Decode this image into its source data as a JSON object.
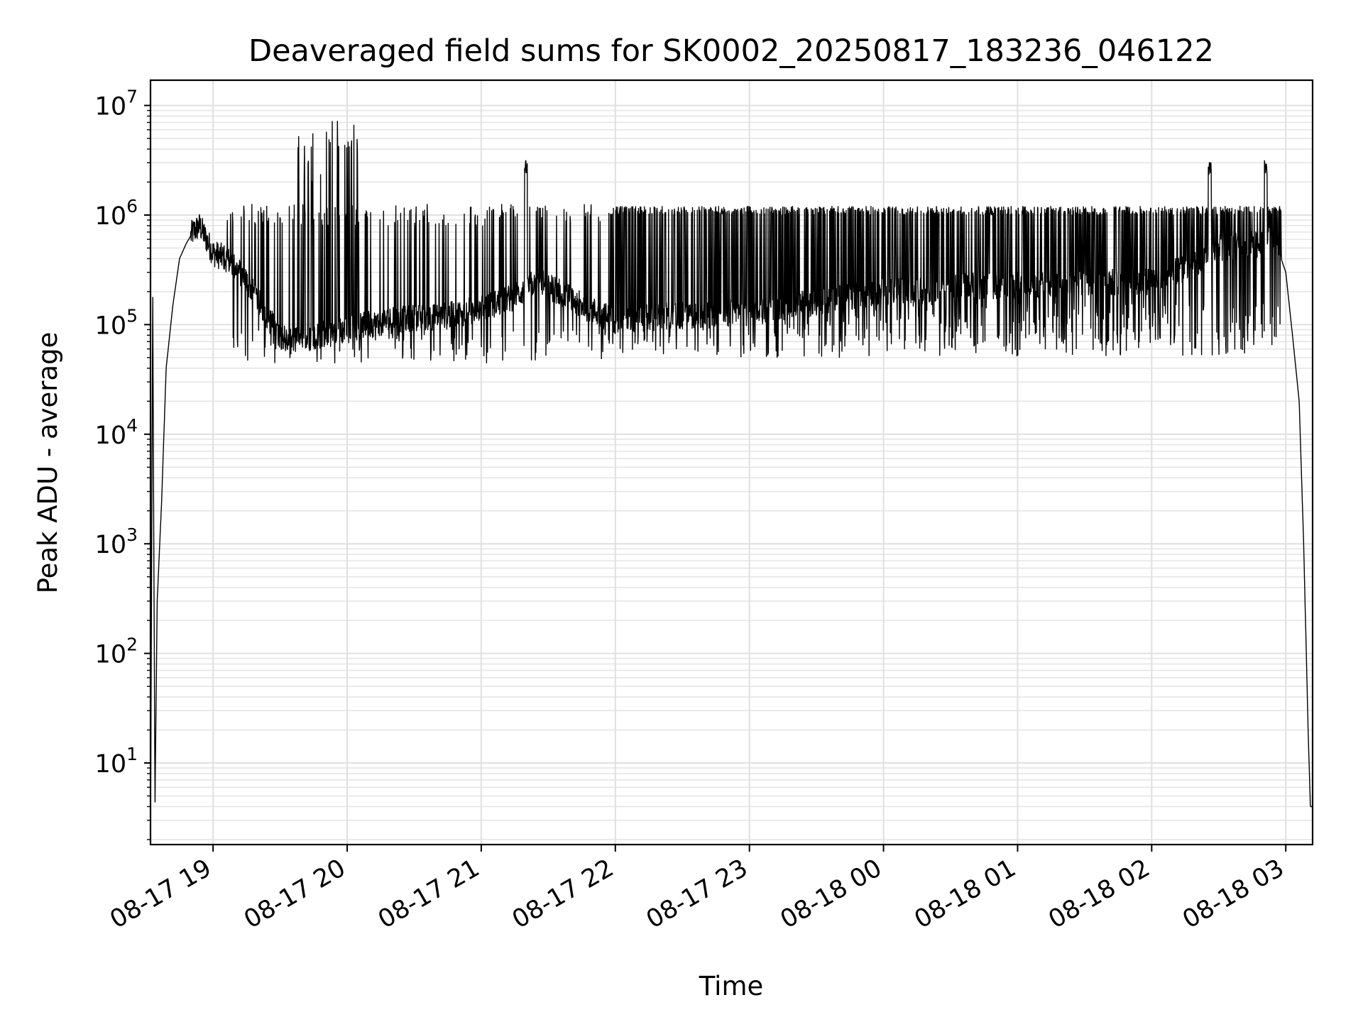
{
  "chart_data": {
    "type": "line",
    "title": "Deaveraged field sums for SK0002_20250817_183236_046122",
    "xlabel": "Time",
    "ylabel": "Peak ADU - average",
    "yscale": "log",
    "grid": true,
    "x_range": [
      "2025-08-17 18:32",
      "2025-08-18 03:12"
    ],
    "y_range": [
      1.8,
      17000000
    ],
    "x_ticks": [
      "08-17 19",
      "08-17 20",
      "08-17 21",
      "08-17 22",
      "08-17 23",
      "08-18 00",
      "08-18 01",
      "08-18 02",
      "08-18 03"
    ],
    "y_ticks": [
      {
        "base": "10",
        "exp": "1"
      },
      {
        "base": "10",
        "exp": "2"
      },
      {
        "base": "10",
        "exp": "3"
      },
      {
        "base": "10",
        "exp": "4"
      },
      {
        "base": "10",
        "exp": "5"
      },
      {
        "base": "10",
        "exp": "6"
      },
      {
        "base": "10",
        "exp": "7"
      }
    ],
    "line_color": "#000000",
    "series": [
      {
        "x": [
          "2025-08-17 18:32",
          "2025-08-17 18:33",
          "2025-08-17 18:34",
          "2025-08-17 18:35",
          "2025-08-17 18:37",
          "2025-08-17 18:39",
          "2025-08-17 18:42",
          "2025-08-17 18:45",
          "2025-08-17 18:48",
          "2025-08-17 18:51",
          "2025-08-17 18:54",
          "2025-08-17 18:57",
          "2025-08-17 19:00",
          "2025-08-17 19:06",
          "2025-08-17 19:12",
          "2025-08-17 19:18",
          "2025-08-17 19:24",
          "2025-08-17 19:30",
          "2025-08-17 19:36",
          "2025-08-17 19:42",
          "2025-08-17 19:48",
          "2025-08-17 19:54",
          "2025-08-17 20:00",
          "2025-08-17 20:10",
          "2025-08-17 20:20",
          "2025-08-17 20:30",
          "2025-08-17 20:45",
          "2025-08-17 21:00",
          "2025-08-17 21:15",
          "2025-08-17 21:25",
          "2025-08-17 21:35",
          "2025-08-17 21:45",
          "2025-08-17 21:55",
          "2025-08-17 22:00",
          "2025-08-17 22:30",
          "2025-08-17 23:00",
          "2025-08-17 23:30",
          "2025-08-18 00:00",
          "2025-08-18 00:30",
          "2025-08-18 01:00",
          "2025-08-18 01:30",
          "2025-08-18 02:00",
          "2025-08-18 02:10",
          "2025-08-18 02:20",
          "2025-08-18 02:30",
          "2025-08-18 02:40",
          "2025-08-18 02:50",
          "2025-08-18 02:55",
          "2025-08-18 03:00",
          "2025-08-18 03:03",
          "2025-08-18 03:06",
          "2025-08-18 03:08",
          "2025-08-18 03:10",
          "2025-08-18 03:11",
          "2025-08-18 03:12"
        ],
        "y": [
          2,
          200000,
          4,
          300,
          2500,
          40000,
          150000,
          400000,
          550000,
          700000,
          800000,
          600000,
          450000,
          400000,
          300000,
          200000,
          120000,
          80000,
          70000,
          75000,
          80000,
          85000,
          90000,
          100000,
          110000,
          115000,
          120000,
          140000,
          180000,
          250000,
          200000,
          150000,
          120000,
          110000,
          120000,
          130000,
          160000,
          200000,
          220000,
          230000,
          240000,
          250000,
          300000,
          350000,
          500000,
          520000,
          560000,
          600000,
          300000,
          80000,
          20000,
          1000,
          20,
          4,
          4
        ]
      }
    ]
  }
}
